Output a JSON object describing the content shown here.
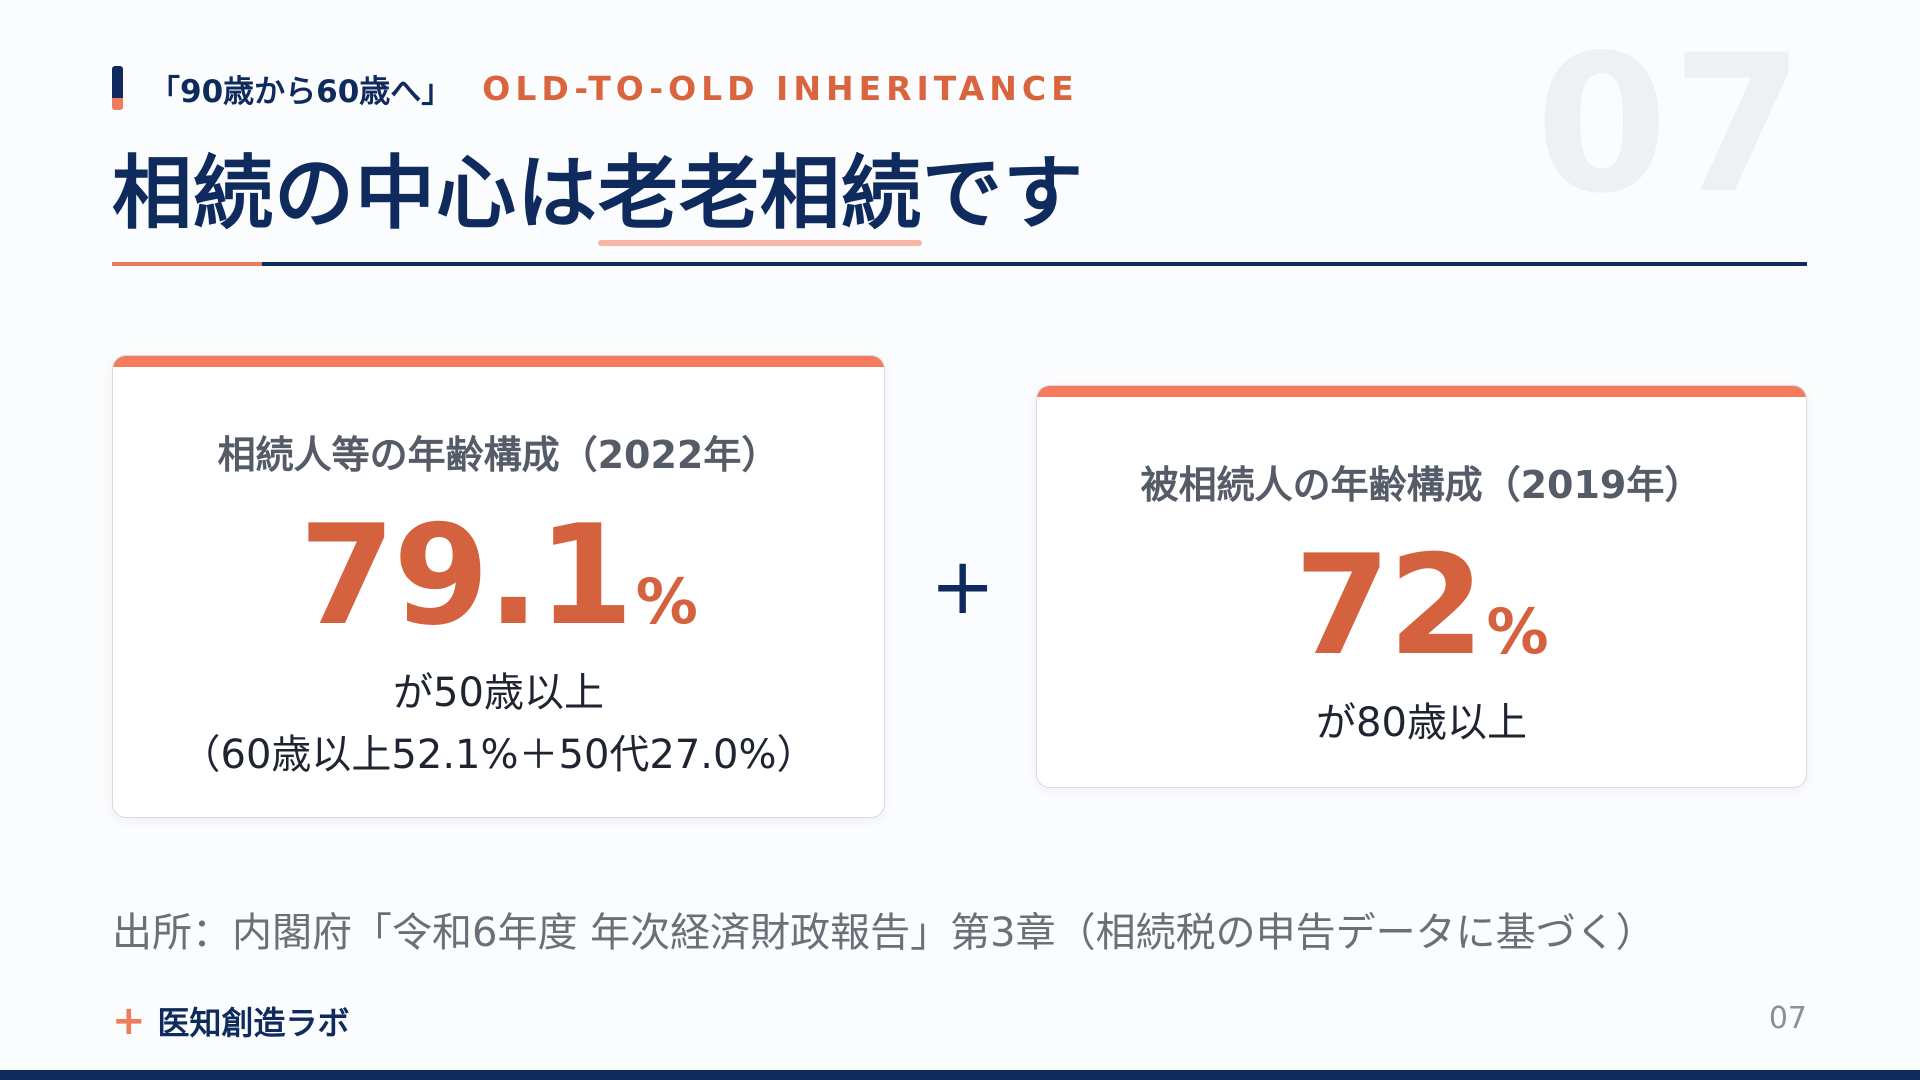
{
  "slide": {
    "number_bg": "07",
    "kicker_jp": "「90歳から60歳へ」",
    "kicker_en": "OLD-TO-OLD INHERITANCE",
    "title_before": "相続の中心は",
    "title_highlight": "老老相続",
    "title_after": "です"
  },
  "cards": [
    {
      "title": "相続人等の年齢構成（2022年）",
      "value": "79.1",
      "unit": "%",
      "desc": "が50歳以上",
      "note": "（60歳以上52.1%＋50代27.0%）"
    },
    {
      "title": "被相続人の年齢構成（2019年）",
      "value": "72",
      "unit": "%",
      "desc": "が80歳以上"
    }
  ],
  "operator": "+",
  "source": "出所：内閣府「令和6年度 年次経済財政報告」第3章（相続税の申告データに基づく）",
  "footer": {
    "brand_icon": "+",
    "brand_name": "医知創造ラボ",
    "page_number": "07"
  },
  "colors": {
    "navy": "#0f2a5c",
    "accent": "#d4623e",
    "accent_light": "#f47c5c"
  }
}
